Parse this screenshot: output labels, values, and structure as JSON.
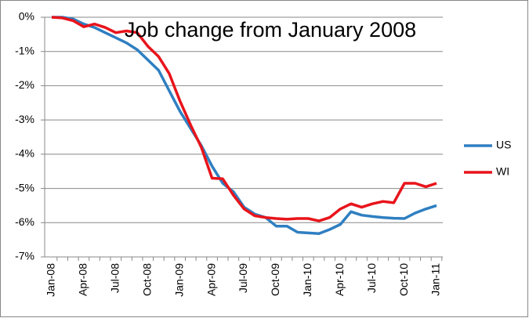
{
  "chart_data": {
    "type": "line",
    "title": "Job change from January 2008",
    "categories": [
      "Jan-08",
      null,
      null,
      "Apr-08",
      null,
      null,
      "Jul-08",
      null,
      null,
      "Oct-08",
      null,
      null,
      "Jan-09",
      null,
      null,
      "Apr-09",
      null,
      null,
      "Jul-09",
      null,
      null,
      "Oct-09",
      null,
      null,
      "Jan-10",
      null,
      null,
      "Apr-10",
      null,
      null,
      "Jul-10",
      null,
      null,
      "Oct-10",
      null,
      null,
      "Jan-11"
    ],
    "series": [
      {
        "name": "US",
        "color": "#2f7fc1",
        "values": [
          0,
          0,
          -0.05,
          -0.2,
          -0.3,
          -0.45,
          -0.6,
          -0.75,
          -0.95,
          -1.25,
          -1.55,
          -2.15,
          -2.75,
          -3.25,
          -3.75,
          -4.35,
          -4.85,
          -5.1,
          -5.55,
          -5.75,
          -5.85,
          -6.1,
          -6.1,
          -6.28,
          -6.3,
          -6.32,
          -6.2,
          -6.05,
          -5.68,
          -5.78,
          -5.82,
          -5.85,
          -5.87,
          -5.88,
          -5.72,
          -5.6,
          -5.5
        ]
      },
      {
        "name": "WI",
        "color": "#e8141b",
        "values": [
          0,
          -0.02,
          -0.1,
          -0.28,
          -0.2,
          -0.3,
          -0.45,
          -0.4,
          -0.45,
          -0.85,
          -1.15,
          -1.65,
          -2.45,
          -3.15,
          -3.8,
          -4.7,
          -4.72,
          -5.2,
          -5.6,
          -5.8,
          -5.85,
          -5.88,
          -5.9,
          -5.88,
          -5.88,
          -5.95,
          -5.85,
          -5.6,
          -5.45,
          -5.55,
          -5.45,
          -5.38,
          -5.42,
          -4.85,
          -4.85,
          -4.95,
          -4.85
        ]
      }
    ],
    "ylim": [
      -7,
      0
    ],
    "yticks": [
      {
        "value": -7,
        "label": "-7%"
      },
      {
        "value": -6,
        "label": "-6%"
      },
      {
        "value": -5,
        "label": "-5%"
      },
      {
        "value": -4,
        "label": "-4%"
      },
      {
        "value": -3,
        "label": "-3%"
      },
      {
        "value": -2,
        "label": "-2%"
      },
      {
        "value": -1,
        "label": "-1%"
      },
      {
        "value": 0,
        "label": "0%"
      }
    ],
    "grid": true,
    "legend": "right"
  }
}
